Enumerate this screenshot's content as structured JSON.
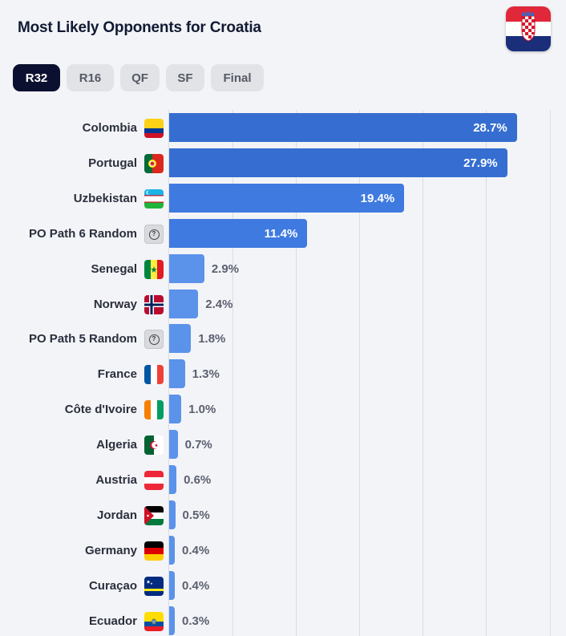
{
  "header": {
    "title": "Most Likely Opponents for Croatia",
    "flag_icon": "croatia-flag-icon"
  },
  "tabs": [
    {
      "label": "R32",
      "active": true
    },
    {
      "label": "R16",
      "active": false
    },
    {
      "label": "QF",
      "active": false
    },
    {
      "label": "SF",
      "active": false
    },
    {
      "label": "Final",
      "active": false
    }
  ],
  "colors": {
    "bar_high": "#356ed0",
    "bar_mid": "#3f7ae0",
    "bar_low": "#5b92ea",
    "tab_active": "#0c1030"
  },
  "chart_data": {
    "type": "bar",
    "orientation": "horizontal",
    "xlim": [
      0,
      30
    ],
    "categories": [
      "Colombia",
      "Portugal",
      "Uzbekistan",
      "PO Path 6 Random",
      "Senegal",
      "Norway",
      "PO Path 5 Random",
      "France",
      "Côte d'Ivoire",
      "Algeria",
      "Austria",
      "Jordan",
      "Germany",
      "Curaçao",
      "Ecuador"
    ],
    "values": [
      28.7,
      27.9,
      19.4,
      11.4,
      2.9,
      2.4,
      1.8,
      1.3,
      1.0,
      0.7,
      0.6,
      0.5,
      0.4,
      0.4,
      0.3
    ],
    "labels": [
      "28.7%",
      "27.9%",
      "19.4%",
      "11.4%",
      "2.9%",
      "2.4%",
      "1.8%",
      "1.3%",
      "1.0%",
      "0.7%",
      "0.6%",
      "0.5%",
      "0.4%",
      "0.4%",
      "0.3%"
    ],
    "icons": [
      "colombia-flag-icon",
      "portugal-flag-icon",
      "uzbekistan-flag-icon",
      "question-icon",
      "senegal-flag-icon",
      "norway-flag-icon",
      "question-icon",
      "france-flag-icon",
      "ivory-coast-flag-icon",
      "algeria-flag-icon",
      "austria-flag-icon",
      "jordan-flag-icon",
      "germany-flag-icon",
      "curacao-flag-icon",
      "ecuador-flag-icon"
    ],
    "grid": true
  }
}
